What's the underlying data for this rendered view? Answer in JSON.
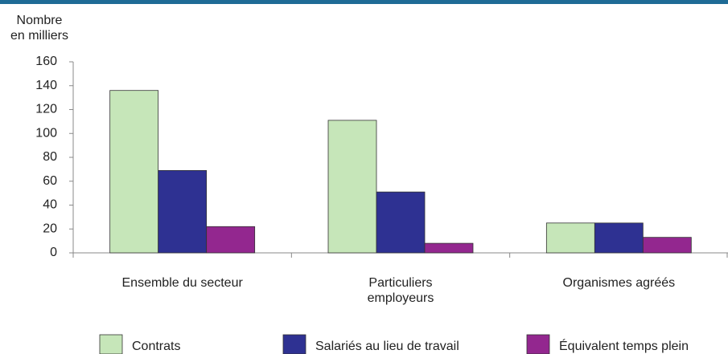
{
  "chart_data": {
    "type": "bar",
    "y_label": "Nombre\nen milliers",
    "categories": [
      "Ensemble du secteur",
      "Particuliers\nemployeurs",
      "Organismes agréés"
    ],
    "series": [
      {
        "name": "Contrats",
        "color": "#c6e6b9",
        "values": [
          136,
          111,
          25
        ]
      },
      {
        "name": "Salariés au lieu de travail",
        "color": "#2e3192",
        "values": [
          69,
          51,
          25
        ]
      },
      {
        "name": "Équivalent temps plein",
        "color": "#93278f",
        "values": [
          22,
          8,
          13
        ]
      }
    ],
    "ylim": [
      0,
      160
    ],
    "yticks": [
      0,
      20,
      40,
      60,
      80,
      100,
      120,
      140,
      160
    ],
    "grid": false
  }
}
